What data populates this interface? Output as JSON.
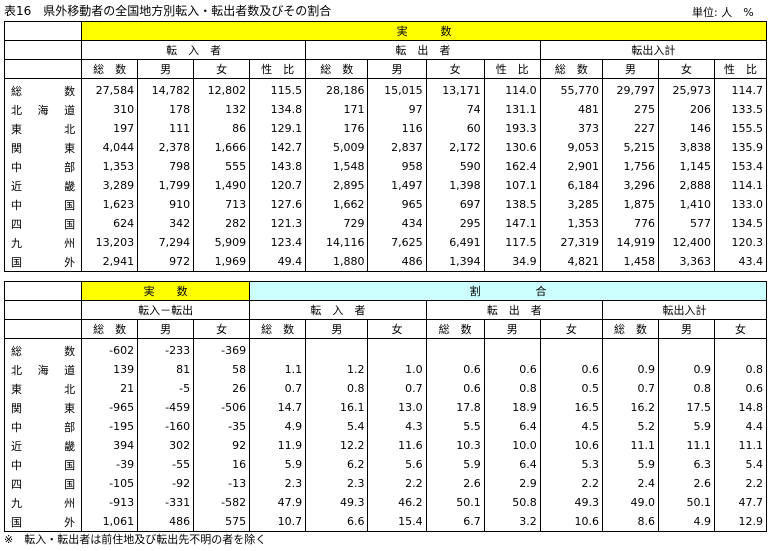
{
  "title": "表16　県外移動者の全国地方別転入・転出者数及びその割合",
  "unit": "単位: 人　%",
  "note": "※　転入・転出者は前住地及び転出先不明の者を除く",
  "table1": {
    "group": "実　　　数",
    "subgroups": [
      "転　入　者",
      "転　出　者",
      "転出入計"
    ],
    "columns": [
      "総　数",
      "男",
      "女",
      "性　比",
      "総　数",
      "男",
      "女",
      "性　比",
      "総　数",
      "男",
      "女",
      "性　比"
    ],
    "rows": [
      {
        "label": "総　数",
        "values": [
          "27,584",
          "14,782",
          "12,802",
          "115.5",
          "28,186",
          "15,015",
          "13,171",
          "114.0",
          "55,770",
          "29,797",
          "25,973",
          "114.7"
        ]
      },
      {
        "label": "北海道",
        "values": [
          "310",
          "178",
          "132",
          "134.8",
          "171",
          "97",
          "74",
          "131.1",
          "481",
          "275",
          "206",
          "133.5"
        ]
      },
      {
        "label": "東　北",
        "values": [
          "197",
          "111",
          "86",
          "129.1",
          "176",
          "116",
          "60",
          "193.3",
          "373",
          "227",
          "146",
          "155.5"
        ]
      },
      {
        "label": "関　東",
        "values": [
          "4,044",
          "2,378",
          "1,666",
          "142.7",
          "5,009",
          "2,837",
          "2,172",
          "130.6",
          "9,053",
          "5,215",
          "3,838",
          "135.9"
        ]
      },
      {
        "label": "中　部",
        "values": [
          "1,353",
          "798",
          "555",
          "143.8",
          "1,548",
          "958",
          "590",
          "162.4",
          "2,901",
          "1,756",
          "1,145",
          "153.4"
        ]
      },
      {
        "label": "近　畿",
        "values": [
          "3,289",
          "1,799",
          "1,490",
          "120.7",
          "2,895",
          "1,497",
          "1,398",
          "107.1",
          "6,184",
          "3,296",
          "2,888",
          "114.1"
        ]
      },
      {
        "label": "中　国",
        "values": [
          "1,623",
          "910",
          "713",
          "127.6",
          "1,662",
          "965",
          "697",
          "138.5",
          "3,285",
          "1,875",
          "1,410",
          "133.0"
        ]
      },
      {
        "label": "四　国",
        "values": [
          "624",
          "342",
          "282",
          "121.3",
          "729",
          "434",
          "295",
          "147.1",
          "1,353",
          "776",
          "577",
          "134.5"
        ]
      },
      {
        "label": "九　州",
        "values": [
          "13,203",
          "7,294",
          "5,909",
          "123.4",
          "14,116",
          "7,625",
          "6,491",
          "117.5",
          "27,319",
          "14,919",
          "12,400",
          "120.3"
        ]
      },
      {
        "label": "国　外",
        "values": [
          "2,941",
          "972",
          "1,969",
          "49.4",
          "1,880",
          "486",
          "1,394",
          "34.9",
          "4,821",
          "1,458",
          "3,363",
          "43.4"
        ]
      }
    ]
  },
  "table2": {
    "group_left": "実　　数",
    "group_right": "割　　　　　合",
    "subgroups": [
      "転入－転出",
      "転　入　者",
      "転　出　者",
      "転出入計"
    ],
    "columns": [
      "総　数",
      "男",
      "女",
      "総　数",
      "男",
      "女",
      "総　数",
      "男",
      "女",
      "総　数",
      "男",
      "女"
    ],
    "rows": [
      {
        "label": "総　数",
        "values": [
          "-602",
          "-233",
          "-369",
          "",
          "",
          "",
          "",
          "",
          "",
          "",
          "",
          ""
        ]
      },
      {
        "label": "北海道",
        "values": [
          "139",
          "81",
          "58",
          "1.1",
          "1.2",
          "1.0",
          "0.6",
          "0.6",
          "0.6",
          "0.9",
          "0.9",
          "0.8"
        ]
      },
      {
        "label": "東　北",
        "values": [
          "21",
          "-5",
          "26",
          "0.7",
          "0.8",
          "0.7",
          "0.6",
          "0.8",
          "0.5",
          "0.7",
          "0.8",
          "0.6"
        ]
      },
      {
        "label": "関　東",
        "values": [
          "-965",
          "-459",
          "-506",
          "14.7",
          "16.1",
          "13.0",
          "17.8",
          "18.9",
          "16.5",
          "16.2",
          "17.5",
          "14.8"
        ]
      },
      {
        "label": "中　部",
        "values": [
          "-195",
          "-160",
          "-35",
          "4.9",
          "5.4",
          "4.3",
          "5.5",
          "6.4",
          "4.5",
          "5.2",
          "5.9",
          "4.4"
        ]
      },
      {
        "label": "近　畿",
        "values": [
          "394",
          "302",
          "92",
          "11.9",
          "12.2",
          "11.6",
          "10.3",
          "10.0",
          "10.6",
          "11.1",
          "11.1",
          "11.1"
        ]
      },
      {
        "label": "中　国",
        "values": [
          "-39",
          "-55",
          "16",
          "5.9",
          "6.2",
          "5.6",
          "5.9",
          "6.4",
          "5.3",
          "5.9",
          "6.3",
          "5.4"
        ]
      },
      {
        "label": "四　国",
        "values": [
          "-105",
          "-92",
          "-13",
          "2.3",
          "2.3",
          "2.2",
          "2.6",
          "2.9",
          "2.2",
          "2.4",
          "2.6",
          "2.2"
        ]
      },
      {
        "label": "九　州",
        "values": [
          "-913",
          "-331",
          "-582",
          "47.9",
          "49.3",
          "46.2",
          "50.1",
          "50.8",
          "49.3",
          "49.0",
          "50.1",
          "47.7"
        ]
      },
      {
        "label": "国　外",
        "values": [
          "1,061",
          "486",
          "575",
          "10.7",
          "6.6",
          "15.4",
          "6.7",
          "3.2",
          "10.6",
          "8.6",
          "4.9",
          "12.9"
        ]
      }
    ]
  }
}
